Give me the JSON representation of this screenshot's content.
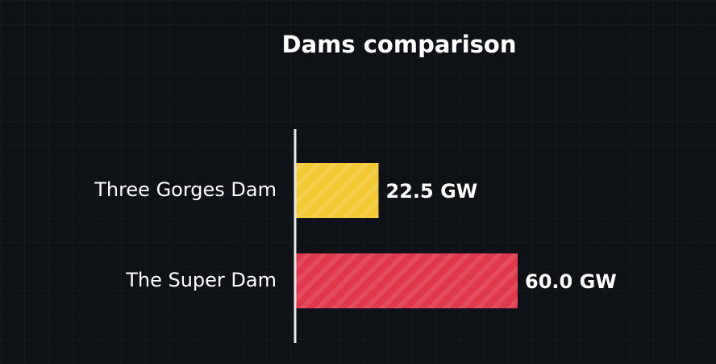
{
  "chart_data": {
    "type": "bar",
    "orientation": "horizontal",
    "title": "Dams comparison",
    "categories": [
      "Three Gorges Dam",
      "The Super Dam"
    ],
    "values": [
      22.5,
      60.0
    ],
    "value_labels": [
      "22.5 GW",
      "60.0 GW"
    ],
    "colors": [
      "#f2c833",
      "#e0384c"
    ]
  }
}
